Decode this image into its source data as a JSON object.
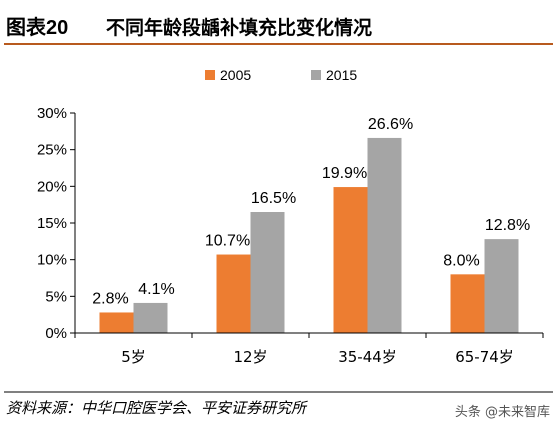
{
  "header": {
    "figure_label": "图表20",
    "title": "不同年龄段龋补填充比变化情况"
  },
  "footer": {
    "source": "资料来源：中华口腔医学会、平安证券研究所",
    "watermark": "头条 @未来智库"
  },
  "colors": {
    "series_2005": "#ED7D31",
    "series_2015": "#A5A5A5",
    "header_rule": "#B85A1E"
  },
  "chart_data": {
    "type": "bar",
    "categories": [
      "5岁",
      "12岁",
      "35-44岁",
      "65-74岁"
    ],
    "series": [
      {
        "name": "2005",
        "values": [
          2.8,
          10.7,
          19.9,
          8.0
        ],
        "labels": [
          "2.8%",
          "10.7%",
          "19.9%",
          "8.0%"
        ]
      },
      {
        "name": "2015",
        "values": [
          4.1,
          16.5,
          26.6,
          12.8
        ],
        "labels": [
          "4.1%",
          "16.5%",
          "26.6%",
          "12.8%"
        ]
      }
    ],
    "ylim": [
      0,
      30
    ],
    "yticks": [
      {
        "value": 0,
        "label": "0%"
      },
      {
        "value": 5,
        "label": "5%"
      },
      {
        "value": 10,
        "label": "10%"
      },
      {
        "value": 15,
        "label": "15%"
      },
      {
        "value": 20,
        "label": "20%"
      },
      {
        "value": 25,
        "label": "25%"
      },
      {
        "value": 30,
        "label": "30%"
      }
    ],
    "title": "",
    "xlabel": "",
    "ylabel": "",
    "grid": false,
    "legend": "top-center"
  }
}
